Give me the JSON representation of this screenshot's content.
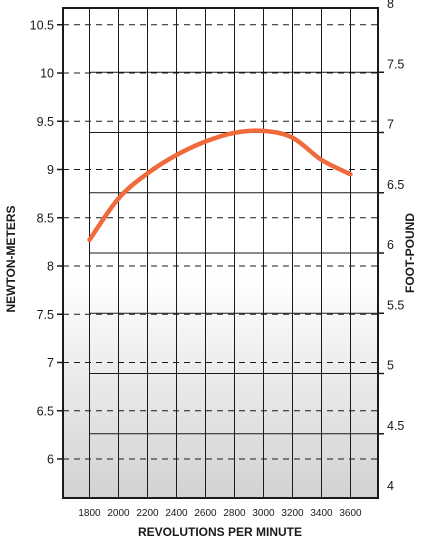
{
  "chart_data": {
    "type": "line",
    "title": "",
    "xlabel": "REVOLUTIONS PER MINUTE",
    "ylabel": "NEWTON-METERS",
    "y2label": "FOOT-POUND",
    "xlim": [
      1800,
      3600
    ],
    "ylim": [
      5.3,
      10.8
    ],
    "y2lim": [
      4,
      8
    ],
    "x_ticks": [
      1800,
      2000,
      2200,
      2400,
      2600,
      2800,
      3000,
      3200,
      3400,
      3600
    ],
    "y_ticks": [
      "10.5",
      "10",
      "9.5",
      "9",
      "8.5",
      "8",
      "7.5",
      "7",
      "6.5",
      "6"
    ],
    "y2_ticks": [
      "8",
      "7.5",
      "7",
      "6.5",
      "6",
      "5.5",
      "5",
      "4.5",
      "4"
    ],
    "grid": true,
    "series": [
      {
        "color": "#f06a3c",
        "x": [
          1800,
          2000,
          2200,
          2400,
          2600,
          2800,
          3000,
          3200,
          3400,
          3600
        ],
        "y": [
          8.27,
          8.7,
          8.96,
          9.15,
          9.29,
          9.38,
          9.4,
          9.33,
          9.1,
          8.95
        ]
      }
    ]
  }
}
